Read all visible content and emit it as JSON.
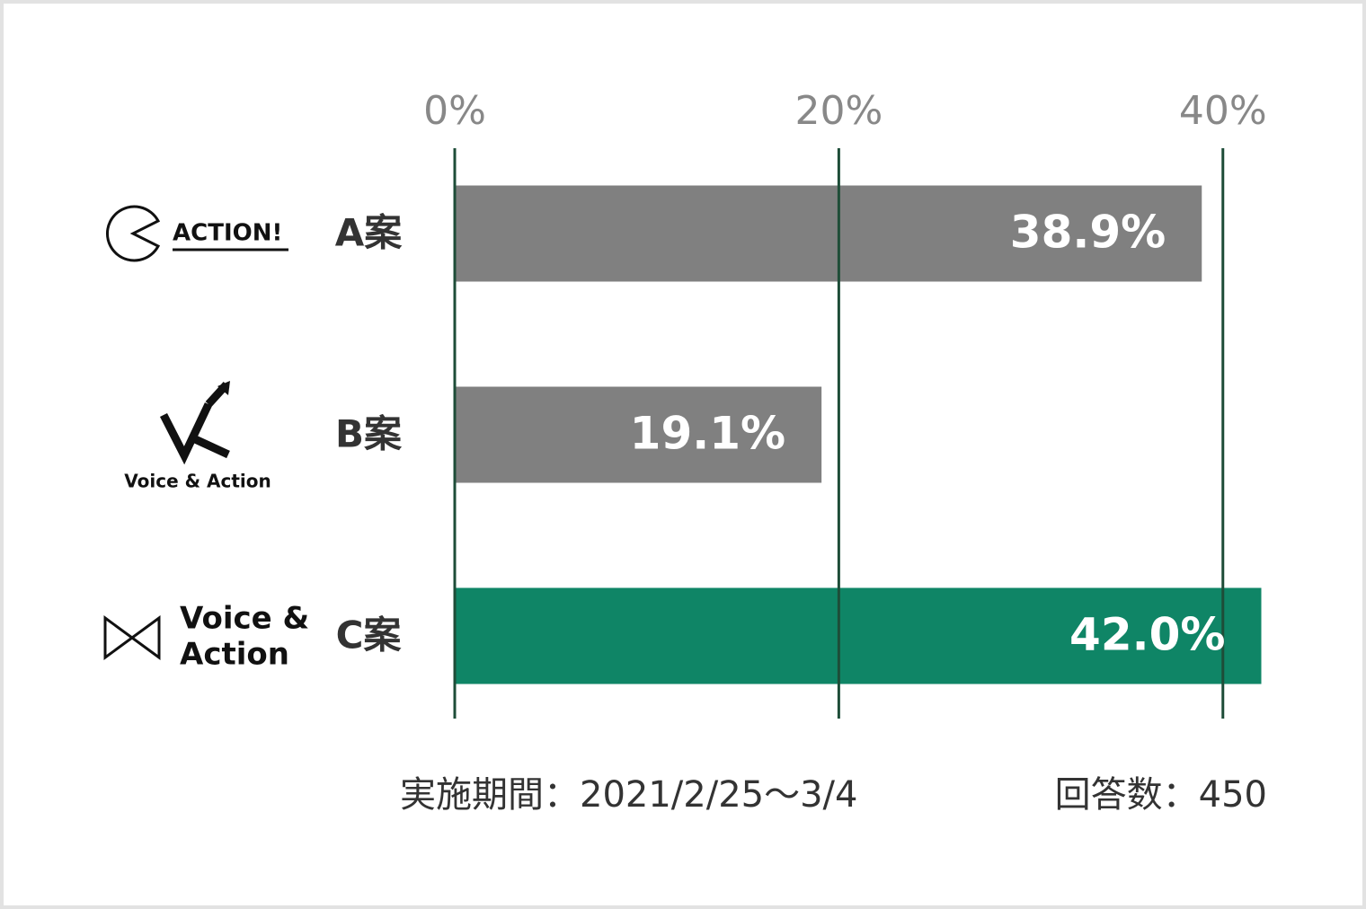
{
  "chart_data": {
    "type": "bar",
    "orientation": "horizontal",
    "categories": [
      "A案",
      "B案",
      "C案"
    ],
    "values": [
      38.9,
      19.1,
      42.0
    ],
    "value_labels": [
      "38.9%",
      "19.1%",
      "42.0%"
    ],
    "colors": [
      "#808080",
      "#808080",
      "#0f8566"
    ],
    "xlim": [
      0,
      42
    ],
    "xticks": [
      {
        "value": 0,
        "label": "0%"
      },
      {
        "value": 20,
        "label": "20%"
      },
      {
        "value": 40,
        "label": "40%"
      }
    ],
    "grid": true,
    "logos": [
      [
        "ACTION!"
      ],
      [
        "Voice & Action"
      ],
      [
        "Voice &",
        "Action"
      ]
    ],
    "annotations": [
      "実施期間：2021/2/25〜3/4",
      "回答数：450"
    ]
  }
}
